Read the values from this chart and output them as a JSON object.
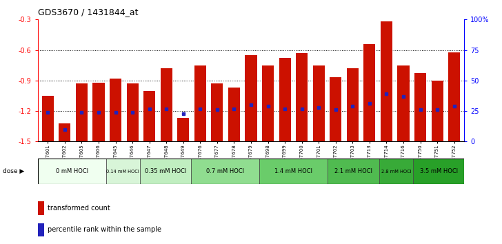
{
  "title": "GDS3670 / 1431844_at",
  "samples": [
    "GSM387601",
    "GSM387602",
    "GSM387605",
    "GSM387606",
    "GSM387645",
    "GSM387646",
    "GSM387647",
    "GSM387648",
    "GSM387649",
    "GSM387676",
    "GSM387677",
    "GSM387678",
    "GSM387679",
    "GSM387698",
    "GSM387699",
    "GSM387700",
    "GSM387701",
    "GSM387702",
    "GSM387703",
    "GSM387713",
    "GSM387714",
    "GSM387716",
    "GSM387750",
    "GSM387751",
    "GSM387752"
  ],
  "bar_values": [
    -1.05,
    -1.32,
    -0.93,
    -0.92,
    -0.88,
    -0.93,
    -1.0,
    -0.78,
    -1.27,
    -0.75,
    -0.93,
    -0.97,
    -0.65,
    -0.75,
    -0.68,
    -0.63,
    -0.75,
    -0.87,
    -0.78,
    -0.54,
    -0.32,
    -0.75,
    -0.83,
    -0.9,
    -0.62
  ],
  "percentile_values": [
    24,
    10,
    24,
    24,
    24,
    24,
    27,
    27,
    23,
    27,
    26,
    27,
    30,
    29,
    27,
    27,
    28,
    26,
    29,
    31,
    39,
    37,
    26,
    26,
    29
  ],
  "dose_groups": [
    {
      "label": "0 mM HOCl",
      "start": 0,
      "end": 4,
      "color": "#f0fff0"
    },
    {
      "label": "0.14 mM HOCl",
      "start": 4,
      "end": 6,
      "color": "#d8f5d8"
    },
    {
      "label": "0.35 mM HOCl",
      "start": 6,
      "end": 9,
      "color": "#c0eec0"
    },
    {
      "label": "0.7 mM HOCl",
      "start": 9,
      "end": 13,
      "color": "#90dd90"
    },
    {
      "label": "1.4 mM HOCl",
      "start": 13,
      "end": 17,
      "color": "#6acc6a"
    },
    {
      "label": "2.1 mM HOCl",
      "start": 17,
      "end": 20,
      "color": "#50bb50"
    },
    {
      "label": "2.8 mM HOCl",
      "start": 20,
      "end": 22,
      "color": "#38aa38"
    },
    {
      "label": "3.5 mM HOCl",
      "start": 22,
      "end": 25,
      "color": "#28a028"
    }
  ],
  "bar_color": "#cc1100",
  "percentile_color": "#2222bb",
  "ylim_left": [
    -1.5,
    -0.3
  ],
  "ylim_right": [
    0,
    100
  ],
  "yticks_left": [
    -1.5,
    -1.2,
    -0.9,
    -0.6,
    -0.3
  ],
  "yticks_right": [
    0,
    25,
    50,
    75,
    100
  ],
  "grid_lines": [
    -0.6,
    -0.9,
    -1.2
  ],
  "bg_color": "#ffffff",
  "fig_width": 7.28,
  "fig_height": 3.54,
  "dpi": 100
}
